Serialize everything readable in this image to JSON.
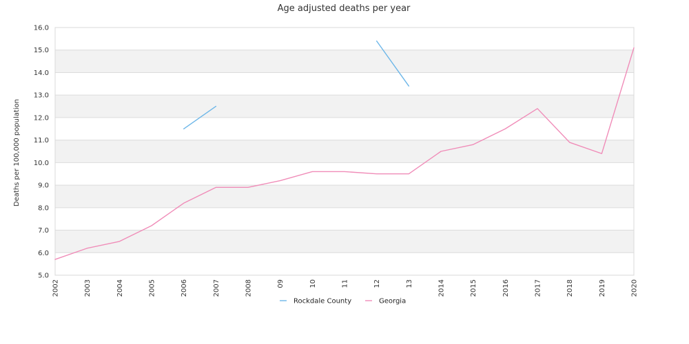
{
  "chart_data": {
    "type": "line",
    "title": "Age adjusted deaths per year",
    "xlabel": "",
    "ylabel": "Deaths per 100,000 population",
    "ylim": [
      5,
      16
    ],
    "yticks": [
      "5.0",
      "6.0",
      "7.0",
      "8.0",
      "9.0",
      "10.0",
      "11.0",
      "12.0",
      "13.0",
      "14.0",
      "15.0",
      "16.0"
    ],
    "categories": [
      "2002",
      "2003",
      "2004",
      "2005",
      "2006",
      "2007",
      "2008",
      "09",
      "10",
      "11",
      "12",
      "13",
      "2014",
      "2015",
      "2016",
      "2017",
      "2018",
      "2019",
      "2020"
    ],
    "grid": true,
    "legend_position": "bottom-center",
    "series": [
      {
        "name": "Rockdale County",
        "color": "#6cb6e8",
        "values": [
          null,
          null,
          null,
          null,
          11.5,
          12.5,
          null,
          null,
          null,
          null,
          15.4,
          13.4,
          null,
          null,
          null,
          null,
          null,
          null,
          null
        ]
      },
      {
        "name": "Georgia",
        "color": "#f08cb8",
        "values": [
          5.7,
          6.2,
          6.5,
          7.2,
          8.2,
          8.9,
          8.9,
          9.2,
          9.6,
          9.6,
          9.5,
          9.5,
          10.5,
          10.8,
          11.5,
          12.4,
          10.9,
          10.4,
          15.1
        ]
      }
    ]
  }
}
